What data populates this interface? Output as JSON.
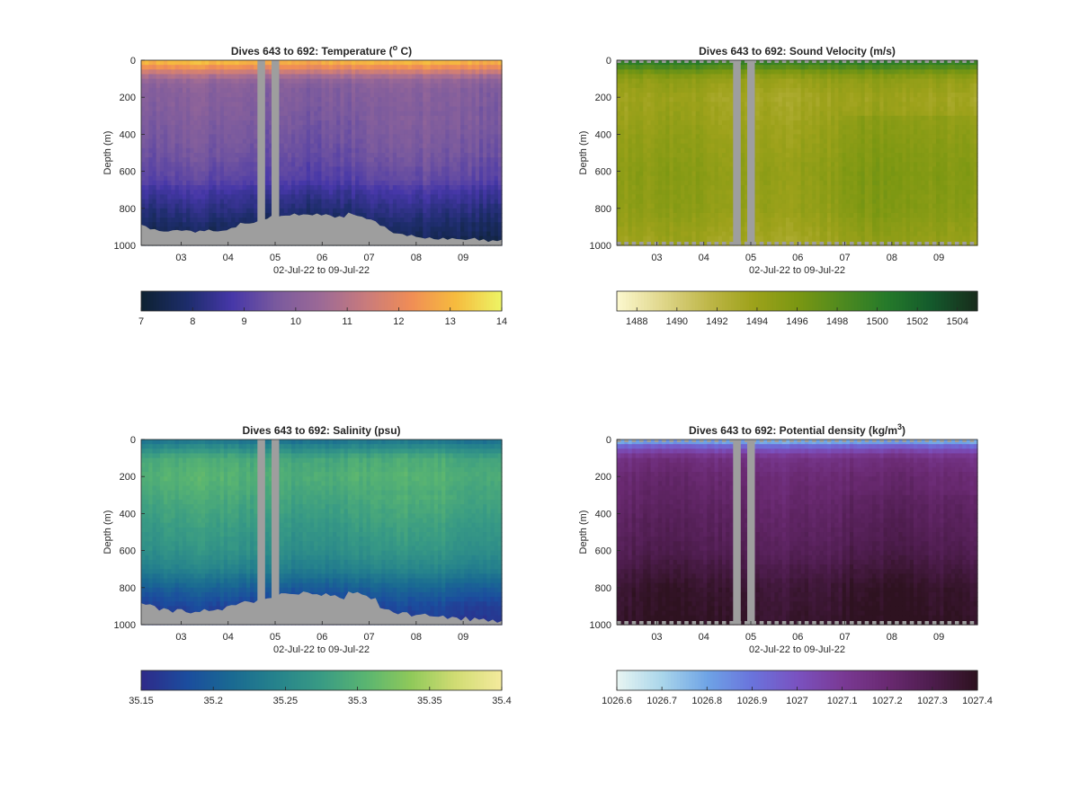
{
  "chart_data": [
    {
      "type": "heatmap",
      "title_pre": "Dives 643 to 692: Temperature (",
      "title_sup": "o",
      "title_post": " C)",
      "ylabel": "Depth (m)",
      "xlabel": "02-Jul-22 to 09-Jul-22",
      "x_range": [
        "02-Jul-22",
        "09-Jul-22"
      ],
      "ylim": [
        1000,
        0
      ],
      "x_ticks": [
        "03",
        "04",
        "05",
        "06",
        "07",
        "08",
        "09"
      ],
      "y_ticks": [
        "0",
        "200",
        "400",
        "600",
        "800",
        "1000"
      ],
      "colorbar_range": [
        7,
        14
      ],
      "colorbar_ticks": [
        "7",
        "8",
        "9",
        "10",
        "11",
        "12",
        "13",
        "14"
      ],
      "colormap": [
        "#0e2233",
        "#1d2d6b",
        "#4637a8",
        "#7a5a9e",
        "#9d6a96",
        "#c97b7c",
        "#f08d56",
        "#f6bb3e",
        "#edf364"
      ],
      "profile": {
        "depths": [
          0,
          30,
          60,
          100,
          150,
          300,
          500,
          650,
          700,
          800,
          900,
          1000
        ],
        "values": [
          13.2,
          12.5,
          11.5,
          10.3,
          9.9,
          9.7,
          9.4,
          9.0,
          8.6,
          8.1,
          7.6,
          7.3
        ]
      },
      "bottom_depth_m": [
        860,
        880,
        920,
        960
      ],
      "gap_days": [
        4.7,
        5.0
      ]
    },
    {
      "type": "heatmap",
      "title_pre": "Dives 643 to 692: Sound Velocity (m/s)",
      "title_sup": "",
      "title_post": "",
      "ylabel": "Depth (m)",
      "xlabel": "02-Jul-22 to 09-Jul-22",
      "x_range": [
        "02-Jul-22",
        "09-Jul-22"
      ],
      "ylim": [
        1000,
        0
      ],
      "x_ticks": [
        "03",
        "04",
        "05",
        "06",
        "07",
        "08",
        "09"
      ],
      "y_ticks": [
        "0",
        "200",
        "400",
        "600",
        "800",
        "1000"
      ],
      "colorbar_range": [
        1487,
        1505
      ],
      "colorbar_ticks": [
        "1488",
        "1490",
        "1492",
        "1494",
        "1496",
        "1498",
        "1500",
        "1502",
        "1504"
      ],
      "colormap": [
        "#fbf7cd",
        "#dfd68a",
        "#bfb74a",
        "#9ea21b",
        "#7b9712",
        "#4f8a1f",
        "#257a2a",
        "#145a2c",
        "#182d1c"
      ],
      "profile": {
        "depths": [
          0,
          30,
          60,
          100,
          200,
          400,
          600,
          800,
          1000
        ],
        "values": [
          1500.5,
          1498.5,
          1496.5,
          1494.5,
          1493.5,
          1494.2,
          1494.8,
          1494.6,
          1493.4
        ]
      },
      "bottom_depth_m": [],
      "gap_days": [
        4.7,
        5.0
      ]
    },
    {
      "type": "heatmap",
      "title_pre": "Dives 643 to 692: Salinity (psu)",
      "title_sup": "",
      "title_post": "",
      "ylabel": "Depth (m)",
      "xlabel": "02-Jul-22 to 09-Jul-22",
      "x_range": [
        "02-Jul-22",
        "09-Jul-22"
      ],
      "ylim": [
        1000,
        0
      ],
      "x_ticks": [
        "03",
        "04",
        "05",
        "06",
        "07",
        "08",
        "09"
      ],
      "y_ticks": [
        "0",
        "200",
        "400",
        "600",
        "800",
        "1000"
      ],
      "colorbar_range": [
        35.15,
        35.4
      ],
      "colorbar_ticks": [
        "35.15",
        "35.2",
        "35.25",
        "35.3",
        "35.35",
        "35.4"
      ],
      "colormap": [
        "#2e2b8a",
        "#1b4d9e",
        "#1a6a92",
        "#26838c",
        "#399b84",
        "#5ab571",
        "#8fc95a",
        "#d1dc73",
        "#f3ea9c"
      ],
      "profile": {
        "depths": [
          0,
          40,
          100,
          200,
          400,
          600,
          700,
          800,
          900,
          1000
        ],
        "values": [
          35.22,
          35.25,
          35.29,
          35.3,
          35.28,
          35.26,
          35.24,
          35.2,
          35.17,
          35.16
        ]
      },
      "bottom_depth_m": [
        860,
        880,
        920,
        960
      ],
      "gap_days": [
        4.7,
        5.0
      ]
    },
    {
      "type": "heatmap",
      "title_pre": "Dives 643 to 692: Potential density (kg/m",
      "title_sup": "3",
      "title_post": ")",
      "ylabel": "Depth (m)",
      "xlabel": "02-Jul-22 to 09-Jul-22",
      "x_range": [
        "02-Jul-22",
        "09-Jul-22"
      ],
      "ylim": [
        1000,
        0
      ],
      "x_ticks": [
        "03",
        "04",
        "05",
        "06",
        "07",
        "08",
        "09"
      ],
      "y_ticks": [
        "0",
        "200",
        "400",
        "600",
        "800",
        "1000"
      ],
      "colorbar_range": [
        1026.6,
        1027.4
      ],
      "colorbar_ticks": [
        "1026.6",
        "1026.7",
        "1026.8",
        "1026.9",
        "1027",
        "1027.1",
        "1027.2",
        "1027.3",
        "1027.4"
      ],
      "colormap": [
        "#e6f4f2",
        "#a8d5ea",
        "#6ea3e6",
        "#6a73dc",
        "#7a52c0",
        "#7a3a95",
        "#6a2a72",
        "#4e1d4e",
        "#2e1220"
      ],
      "profile": {
        "depths": [
          0,
          20,
          50,
          100,
          200,
          400,
          600,
          700,
          800,
          1000
        ],
        "values": [
          1026.72,
          1026.85,
          1027.0,
          1027.15,
          1027.2,
          1027.24,
          1027.28,
          1027.32,
          1027.36,
          1027.38
        ]
      },
      "bottom_depth_m": [],
      "gap_days": [
        4.7,
        5.0
      ]
    }
  ]
}
